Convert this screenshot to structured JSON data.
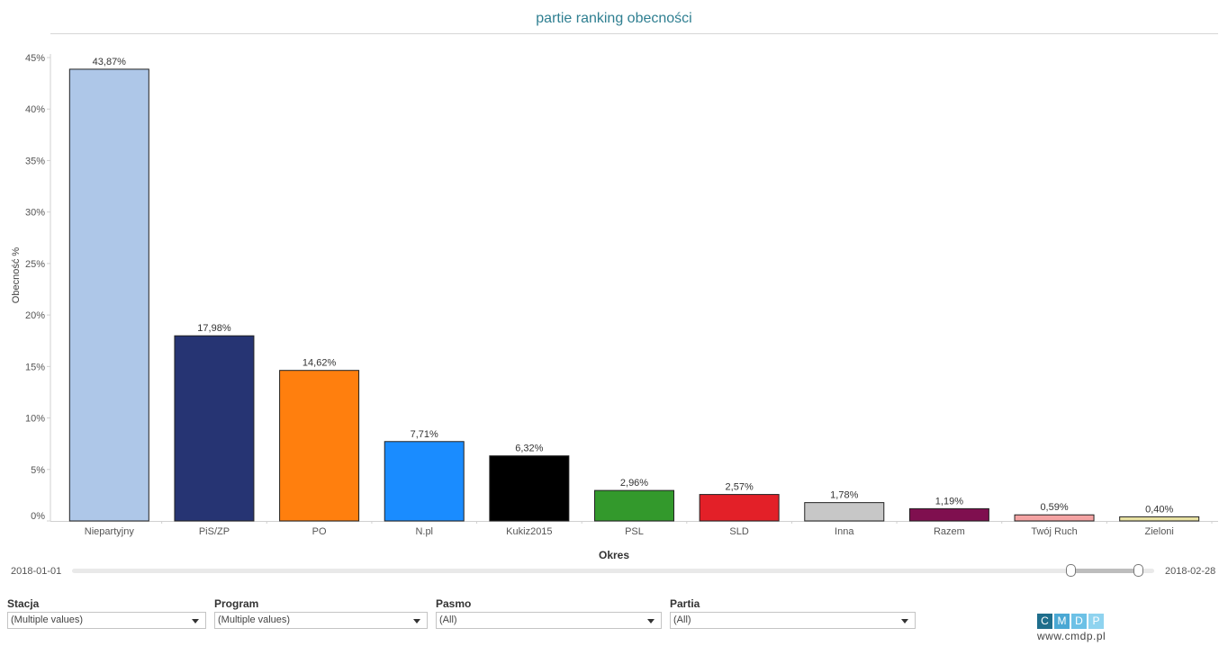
{
  "chart_data": {
    "type": "bar",
    "title": "partie ranking obecności",
    "ylabel": "Obecność %",
    "xlabel": "Okres",
    "ylim": [
      0,
      45
    ],
    "yticks": [
      "0%",
      "5%",
      "10%",
      "15%",
      "20%",
      "25%",
      "30%",
      "35%",
      "40%",
      "45%"
    ],
    "categories": [
      "Niepartyjny",
      "PiS/ZP",
      "PO",
      "N.pl",
      "Kukiz2015",
      "PSL",
      "SLD",
      "Inna",
      "Razem",
      "Twój Ruch",
      "Zieloni"
    ],
    "values": [
      43.87,
      17.98,
      14.62,
      7.71,
      6.32,
      2.96,
      2.57,
      1.78,
      1.19,
      0.59,
      0.4
    ],
    "labels": [
      "43,87%",
      "17,98%",
      "14,62%",
      "7,71%",
      "6,32%",
      "2,96%",
      "2,57%",
      "1,78%",
      "1,19%",
      "0,59%",
      "0,40%"
    ],
    "colors": [
      "#aec7e8",
      "#263473",
      "#ff7f0e",
      "#1a8cff",
      "#000000",
      "#33992c",
      "#e32028",
      "#c7c7c7",
      "#7f0f4f",
      "#f4a3a3",
      "#e8e2a2"
    ],
    "grid": false,
    "legend": "none"
  },
  "period": {
    "start": "2018-01-01",
    "end": "2018-02-28",
    "selected_start_fraction": 0.92,
    "selected_end_fraction": 0.985
  },
  "filters": [
    {
      "label": "Stacja",
      "value": "(Multiple values)"
    },
    {
      "label": "Program",
      "value": "(Multiple values)"
    },
    {
      "label": "Pasmo",
      "value": "(All)"
    },
    {
      "label": "Partia",
      "value": "(All)"
    }
  ],
  "logo": {
    "letters": [
      "C",
      "M",
      "D",
      "P"
    ],
    "colors": [
      "#1f6e8c",
      "#4aa8d4",
      "#6cc1e6",
      "#8fd3ef"
    ],
    "url": "www.cmdp.pl"
  }
}
